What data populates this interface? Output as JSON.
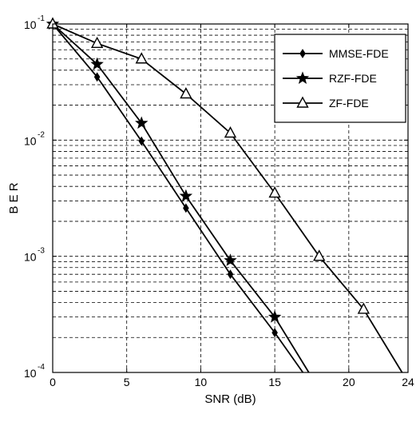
{
  "chart_data": {
    "type": "line",
    "title": "",
    "xlabel": "SNR (dB)",
    "ylabel": "B E R",
    "xlim": [
      0,
      24
    ],
    "ylim": [
      0.0001,
      0.1
    ],
    "yscale": "log",
    "grid": true,
    "x_ticks": [
      "0",
      "5",
      "10",
      "15",
      "20",
      "24"
    ],
    "x_tick_values": [
      0,
      5,
      10,
      15,
      20,
      24
    ],
    "y_ticks": [
      {
        "base": "10",
        "exp": "-4",
        "value": 0.0001
      },
      {
        "base": "10",
        "exp": "-3",
        "value": 0.001
      },
      {
        "base": "10",
        "exp": "-2",
        "value": 0.01
      },
      {
        "base": "10",
        "exp": "-1",
        "value": 0.1
      }
    ],
    "legend_position": "top-right",
    "line_color": "#000000",
    "series": [
      {
        "name": "MMSE-FDE",
        "marker": "diamond",
        "x": [
          0,
          3,
          6,
          9,
          12,
          15,
          16.9
        ],
        "y": [
          0.1,
          0.035,
          0.0098,
          0.0026,
          0.0007,
          0.00022,
          0.0001
        ]
      },
      {
        "name": "RZF-FDE",
        "marker": "star",
        "x": [
          0,
          3,
          6,
          9,
          12,
          15,
          17.3
        ],
        "y": [
          0.1,
          0.045,
          0.014,
          0.0033,
          0.00092,
          0.0003,
          0.0001
        ]
      },
      {
        "name": "ZF-FDE",
        "marker": "triangle",
        "x": [
          0,
          3,
          6,
          9,
          12,
          15,
          18,
          21,
          23.6
        ],
        "y": [
          0.1,
          0.068,
          0.05,
          0.025,
          0.0115,
          0.0035,
          0.001,
          0.00035,
          0.0001
        ]
      }
    ]
  }
}
